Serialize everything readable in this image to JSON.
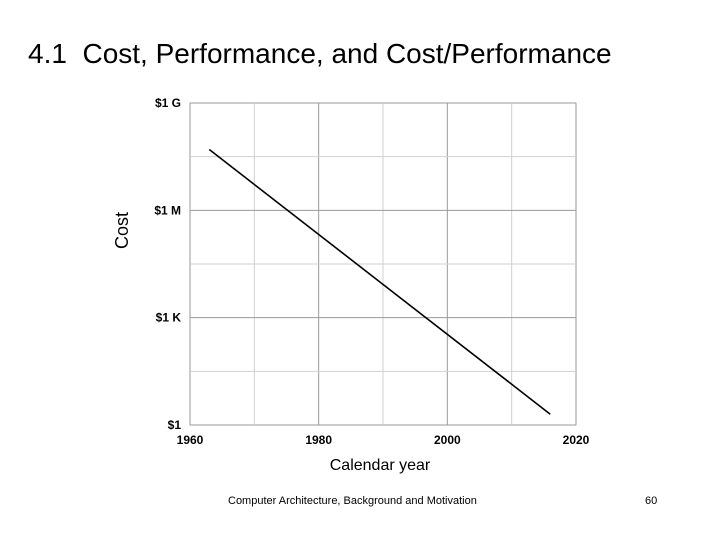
{
  "slide": {
    "title": "4.1  Cost, Performance, and Cost/Performance",
    "footer": "Computer Architecture, Background and Motivation",
    "page_number": "60"
  },
  "chart_data": {
    "type": "line",
    "xlabel": "Calendar year",
    "ylabel": "Cost",
    "x_ticks": [
      "1960",
      "1980",
      "2000",
      "2020"
    ],
    "y_ticks": [
      "$1",
      "$1 K",
      "$1 M",
      "$1 G"
    ],
    "x_range": [
      1960,
      2020
    ],
    "y_scale": "log",
    "y_range": [
      1,
      1000000000
    ],
    "grid": true,
    "series": [
      {
        "x": [
          1963,
          2016
        ],
        "y": [
          50000000,
          2
        ]
      }
    ]
  }
}
